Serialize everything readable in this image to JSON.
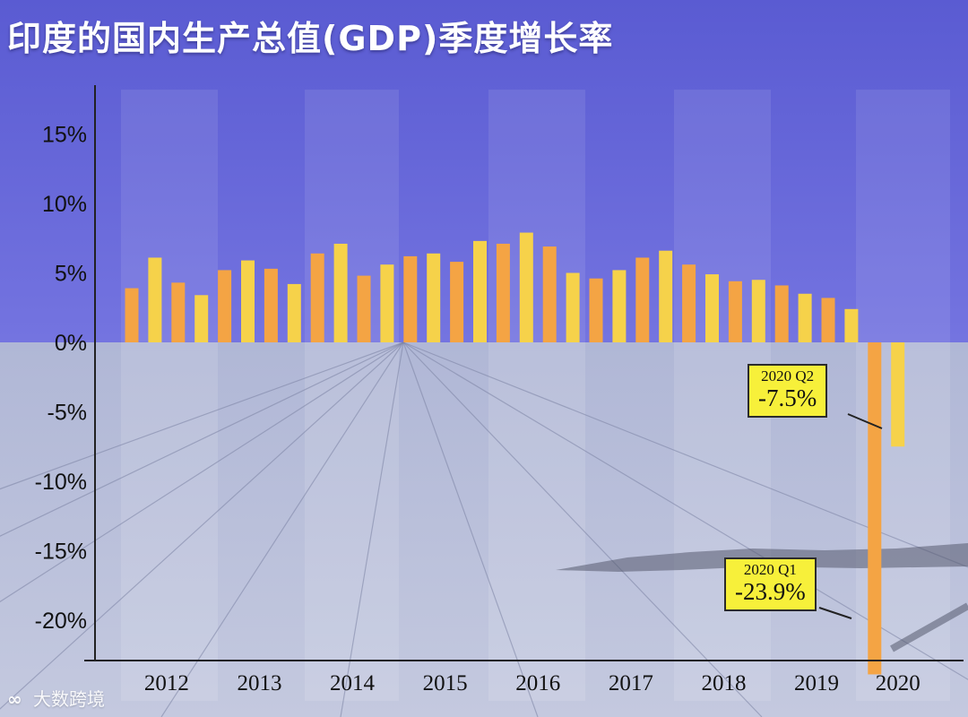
{
  "title": "印度的国内生产总值(GDP)季度增长率",
  "watermark": {
    "icon": "wechat-logo-icon",
    "text": "大数跨境"
  },
  "colors": {
    "bar_orange": "#f4a444",
    "bar_yellow": "#f6d24a",
    "top_bg": "#6a6ad8",
    "bottom_bg": "#b7bed8",
    "callout": "#f7f03a"
  },
  "chart_data": {
    "type": "bar",
    "title": "印度的国内生产总值(GDP)季度增长率",
    "xlabel": "",
    "ylabel": "",
    "ylim": [
      -25,
      17.5
    ],
    "yticks": [
      15,
      10,
      5,
      0,
      -5,
      -10,
      -15,
      -20
    ],
    "ytick_labels": [
      "15%",
      "10%",
      "5%",
      "0%",
      "-5%",
      "-10%",
      "-15%",
      "-20%"
    ],
    "year_labels": [
      "2012",
      "2013",
      "2014",
      "2015",
      "2016",
      "2017",
      "2018",
      "2019",
      "2020"
    ],
    "year_label_positions": [
      1.5,
      5.5,
      9.5,
      13.5,
      17.5,
      21.5,
      25.5,
      29.5,
      33.0
    ],
    "values": [
      3.9,
      6.1,
      4.3,
      3.4,
      5.2,
      5.9,
      5.3,
      4.2,
      6.4,
      7.1,
      4.8,
      5.6,
      6.2,
      6.4,
      5.8,
      7.3,
      7.1,
      7.9,
      6.9,
      5.0,
      4.6,
      5.2,
      6.1,
      6.6,
      5.6,
      4.9,
      4.4,
      4.5,
      4.1,
      3.5,
      3.2,
      2.4,
      -23.9,
      -7.5
    ],
    "annotations": [
      {
        "label": "2020 Q2",
        "value": "-7.5%"
      },
      {
        "label": "2020 Q1",
        "value": "-23.9%"
      }
    ],
    "grid": false,
    "legend": "none"
  }
}
